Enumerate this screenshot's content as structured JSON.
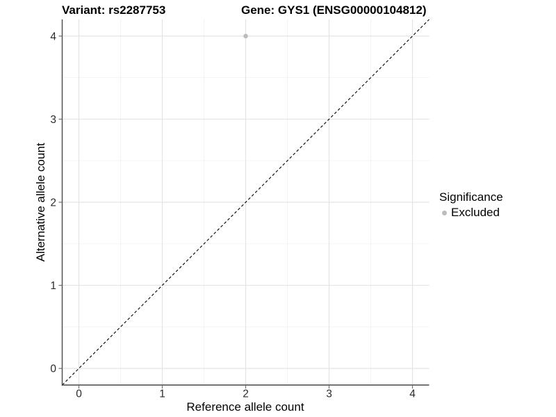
{
  "header": {
    "variant_title": "Variant: rs2287753",
    "gene_title": "Gene: GYS1 (ENSG00000104812)"
  },
  "legend": {
    "title": "Significance",
    "items": [
      {
        "label": "Excluded",
        "color": "#bcbcbc"
      }
    ]
  },
  "chart_data": {
    "type": "scatter",
    "titles": [
      "Variant: rs2287753",
      "Gene: GYS1 (ENSG00000104812)"
    ],
    "xlabel": "Reference allele count",
    "ylabel": "Alternative allele count",
    "xlim": [
      -0.2,
      4.2
    ],
    "ylim": [
      -0.2,
      4.2
    ],
    "x_ticks": [
      0,
      1,
      2,
      3,
      4
    ],
    "y_ticks": [
      0,
      1,
      2,
      3,
      4
    ],
    "grid": "major+minor",
    "legend_position": "right",
    "series": [
      {
        "name": "Excluded",
        "color": "#bcbcbc",
        "points": [
          {
            "x": 2,
            "y": 4
          }
        ]
      }
    ],
    "reference_line": {
      "slope": 1,
      "intercept": 0,
      "style": "dashed",
      "color": "#111111"
    }
  },
  "style": {
    "grid_major": "#e4e4e4",
    "grid_minor": "#f2f2f2",
    "axis_line": "#474747",
    "tick_mark": "#6e6e6e",
    "tick_text": "#2b2b2b",
    "point_radius": 3.3
  }
}
